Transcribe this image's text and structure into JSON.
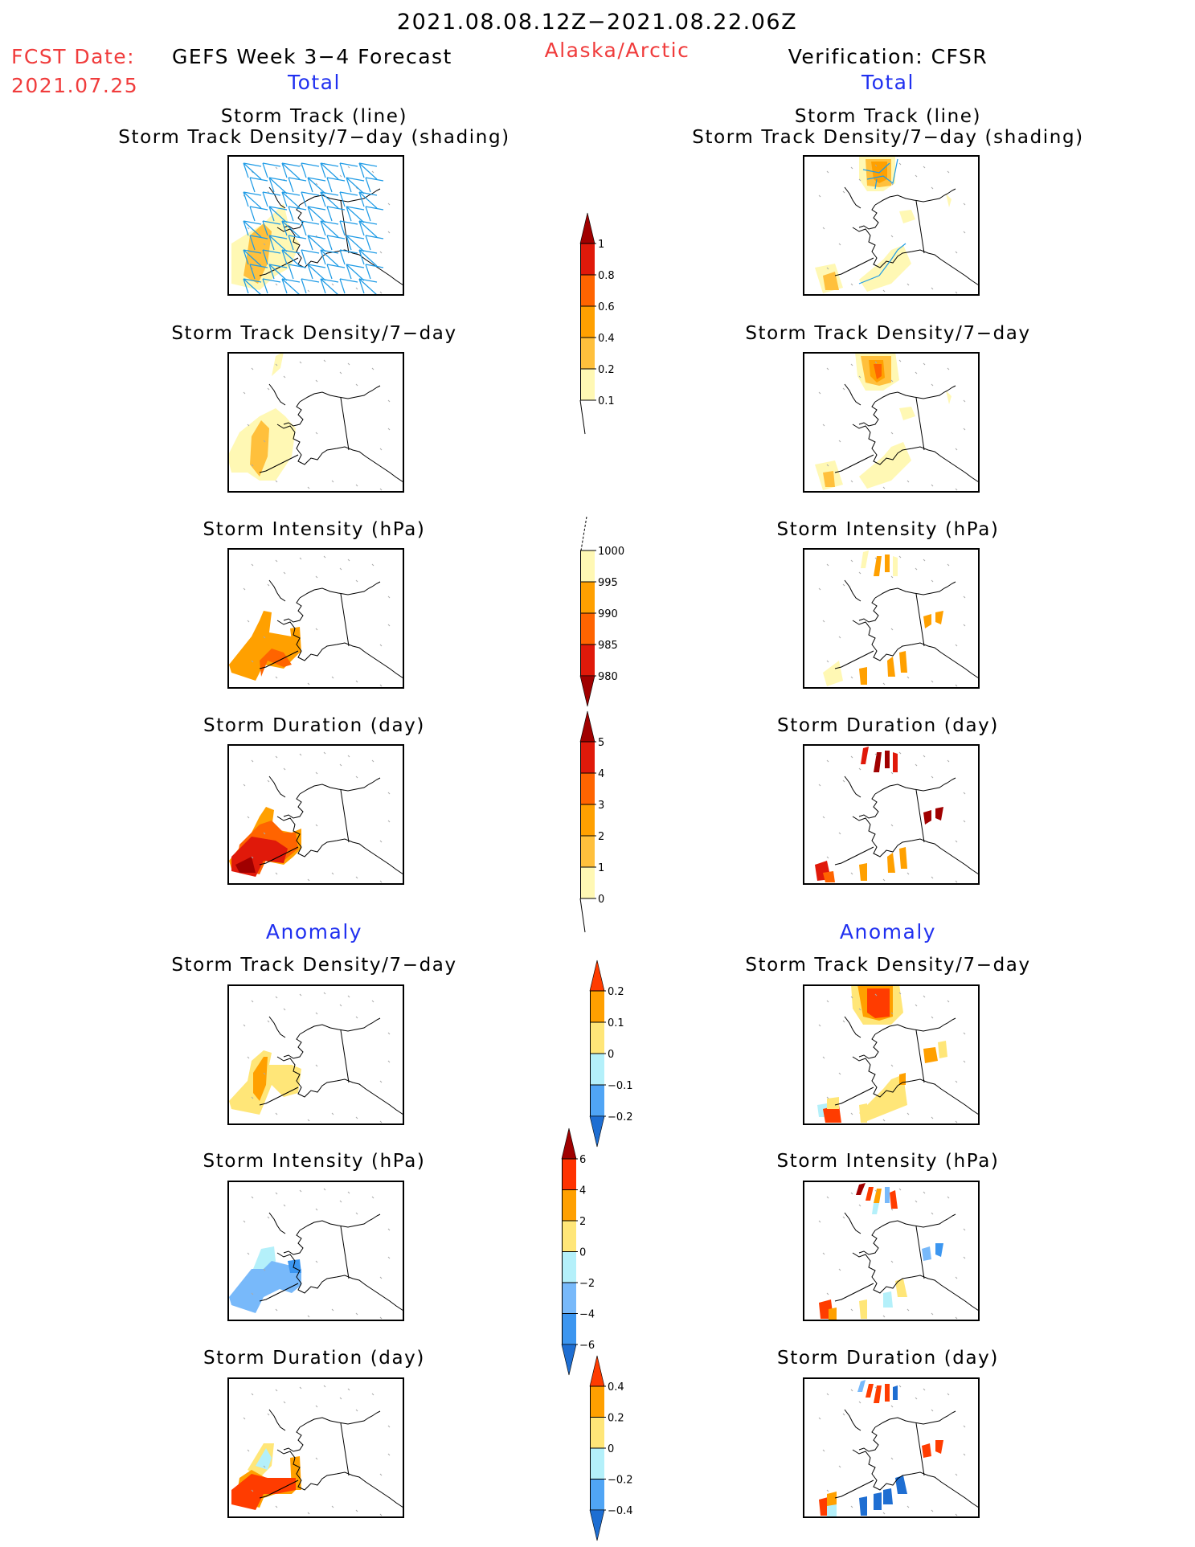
{
  "header": {
    "period": "2021.08.08.12Z−2021.08.22.06Z",
    "fcst_label": "FCST Date:",
    "fcst_date": "2021.07.25",
    "forecast_title": "GEFS Week 3−4 Forecast",
    "region": "Alaska/Arctic",
    "verification": "Verification: CFSR",
    "total_left": "Total",
    "total_right": "Total",
    "anomaly_left": "Anomaly",
    "anomaly_right": "Anomaly"
  },
  "colors": {
    "title_red": "#f03c3c",
    "section_blue": "#2030f0",
    "track_line": "#1e9be6"
  },
  "chart_data": [
    {
      "type": "heatmap",
      "panel": "forecast-total-track-density",
      "title_line1": "Storm Track (line)",
      "title_line2": "Storm Track Density/7−day (shading)",
      "region": "Alaska/Arctic",
      "dominant_values": "0.1–0.4 over Bering Sea, tracks cover western/central Alaska"
    },
    {
      "type": "heatmap",
      "panel": "verification-total-track-density",
      "title_line1": "Storm Track (line)",
      "title_line2": "Storm Track Density/7−day (shading)"
    },
    {
      "type": "heatmap",
      "panel": "forecast-total-density",
      "title": "Storm Track Density/7−day"
    },
    {
      "type": "heatmap",
      "panel": "verification-total-density",
      "title": "Storm Track Density/7−day"
    },
    {
      "type": "heatmap",
      "panel": "forecast-total-intensity",
      "title": "Storm Intensity (hPa)"
    },
    {
      "type": "heatmap",
      "panel": "verification-total-intensity",
      "title": "Storm Intensity (hPa)"
    },
    {
      "type": "heatmap",
      "panel": "forecast-total-duration",
      "title": "Storm Duration (day)"
    },
    {
      "type": "heatmap",
      "panel": "verification-total-duration",
      "title": "Storm Duration (day)"
    },
    {
      "type": "heatmap",
      "panel": "forecast-anomaly-density",
      "title": "Storm Track Density/7−day"
    },
    {
      "type": "heatmap",
      "panel": "verification-anomaly-density",
      "title": "Storm Track Density/7−day"
    },
    {
      "type": "heatmap",
      "panel": "forecast-anomaly-intensity",
      "title": "Storm Intensity (hPa)"
    },
    {
      "type": "heatmap",
      "panel": "verification-anomaly-intensity",
      "title": "Storm Intensity (hPa)"
    },
    {
      "type": "heatmap",
      "panel": "forecast-anomaly-duration",
      "title": "Storm Duration (day)"
    },
    {
      "type": "heatmap",
      "panel": "verification-anomaly-duration",
      "title": "Storm Duration (day)"
    }
  ],
  "colorbars": [
    {
      "name": "total-density",
      "labels": [
        "1",
        "0.8",
        "0.6",
        "0.4",
        "0.2",
        "0.1"
      ],
      "colors": [
        "#a00000",
        "#e0190a",
        "#ff6400",
        "#ffa000",
        "#ffc03c",
        "#fff8b4"
      ],
      "top_arrow": true,
      "bottom_arrow": false
    },
    {
      "name": "total-intensity",
      "labels": [
        "1000",
        "995",
        "990",
        "985",
        "980"
      ],
      "colors": [
        "#fff8b4",
        "#ffa000",
        "#ff6400",
        "#e0190a",
        "#a00000"
      ],
      "top_arrow": false,
      "bottom_arrow": true
    },
    {
      "name": "total-duration",
      "labels": [
        "5",
        "4",
        "3",
        "2",
        "1",
        "0"
      ],
      "colors": [
        "#a00000",
        "#e0190a",
        "#ff6400",
        "#ffa000",
        "#ffc03c",
        "#fff8b4"
      ],
      "top_arrow": true,
      "bottom_arrow": false
    },
    {
      "name": "anomaly-density",
      "labels": [
        "0.2",
        "0.1",
        "0",
        "−0.1",
        "−0.2"
      ],
      "colors": [
        "#ff3c00",
        "#ffa000",
        "#ffe678",
        "#b4f0fa",
        "#50a5f5",
        "#1e6ed2"
      ],
      "top_arrow": true,
      "bottom_arrow": true
    },
    {
      "name": "anomaly-intensity",
      "labels": [
        "6",
        "4",
        "2",
        "0",
        "−2",
        "−4",
        "−6"
      ],
      "colors": [
        "#a00000",
        "#ff3200",
        "#ffa000",
        "#ffe678",
        "#b4f0fa",
        "#78b9fa",
        "#3c96f0",
        "#1e6ed2"
      ],
      "top_arrow": true,
      "bottom_arrow": true
    },
    {
      "name": "anomaly-duration",
      "labels": [
        "0.4",
        "0.2",
        "0",
        "−0.2",
        "−0.4"
      ],
      "colors": [
        "#ff3c00",
        "#ffa000",
        "#ffe678",
        "#b4f0fa",
        "#50a5f5",
        "#1e6ed2"
      ],
      "top_arrow": true,
      "bottom_arrow": true
    }
  ]
}
